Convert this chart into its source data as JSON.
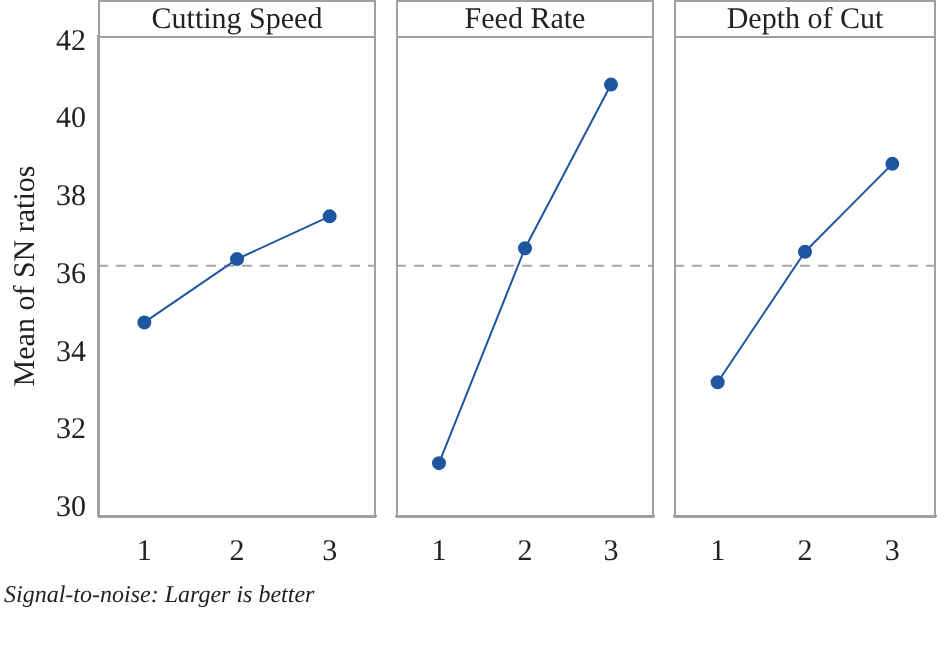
{
  "chart_data": [
    {
      "type": "line",
      "title": "Cutting Speed",
      "ylabel": "Mean of SN ratios",
      "categories": [
        "1",
        "2",
        "3"
      ],
      "series": [
        {
          "color": "#1f56a0",
          "values": [
            34.78,
            36.41,
            37.51
          ]
        }
      ],
      "ylim": [
        29.8,
        42.15
      ],
      "yticks": [
        30,
        32,
        34,
        36,
        38,
        40,
        42
      ],
      "grid": false,
      "legend": false,
      "marker": "circle",
      "line_style": "solid",
      "ref_lines": [
        {
          "axis": "y",
          "value": 36.24,
          "color": "#a6a6a6",
          "line_style": "dashed"
        }
      ],
      "annotations": [
        "Signal-to-noise: Larger is better"
      ]
    },
    {
      "type": "line",
      "title": "Feed Rate",
      "categories": [
        "1",
        "2",
        "3"
      ],
      "series": [
        {
          "color": "#1f56a0",
          "values": [
            31.16,
            36.69,
            40.9
          ]
        }
      ],
      "ylim": [
        29.8,
        42.15
      ],
      "yticks": [
        30,
        32,
        34,
        36,
        38,
        40,
        42
      ],
      "tick_labels": "x",
      "grid": false,
      "legend": false,
      "marker": "circle",
      "line_style": "solid",
      "ref_lines": [
        {
          "axis": "y",
          "value": 36.24,
          "color": "#a6a6a6",
          "line_style": "dashed"
        }
      ]
    },
    {
      "type": "line",
      "title": "Depth of Cut",
      "categories": [
        "1",
        "2",
        "3"
      ],
      "series": [
        {
          "color": "#1f56a0",
          "values": [
            33.24,
            36.6,
            38.86
          ]
        }
      ],
      "ylim": [
        29.8,
        42.15
      ],
      "yticks": [
        30,
        32,
        34,
        36,
        38,
        40,
        42
      ],
      "tick_labels": "x",
      "grid": false,
      "legend": false,
      "marker": "circle",
      "line_style": "solid",
      "ref_lines": [
        {
          "axis": "y",
          "value": 36.24,
          "color": "#a6a6a6",
          "line_style": "dashed"
        }
      ]
    }
  ]
}
